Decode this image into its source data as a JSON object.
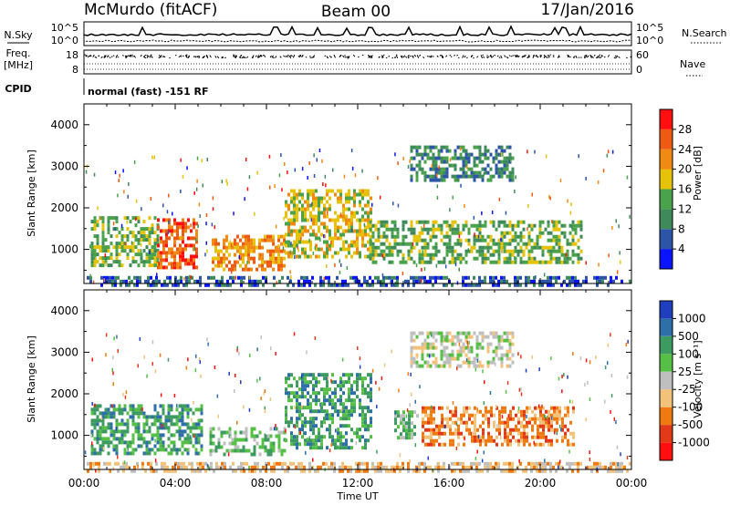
{
  "header": {
    "radar": "McMurdo (fitACF)",
    "beam": "Beam 00",
    "date": "17/Jan/2016"
  },
  "noise_panel": {
    "left_label": "N.Sky",
    "right_label": "N.Search",
    "left_ticks": [
      "10^5",
      "10^0"
    ],
    "right_ticks": [
      "10^5",
      "10^0"
    ]
  },
  "freq_panel": {
    "label_line1": "Freq.",
    "label_line2": "[MHz]",
    "left_ticks": [
      "18",
      "8"
    ],
    "right_label": "Nave",
    "right_ticks": [
      "60",
      "0"
    ]
  },
  "cpid": {
    "label": "CPID",
    "text": "normal (fast) -151 RF"
  },
  "chart_data": [
    {
      "type": "heatmap",
      "name": "power",
      "ylabel": "Slant Range [km]",
      "xlabel": "",
      "x_ticks": [
        "00:00",
        "04:00",
        "08:00",
        "12:00",
        "16:00",
        "20:00",
        "00:00"
      ],
      "xlim": [
        0,
        24
      ],
      "y_ticks": [
        1000,
        2000,
        3000,
        4000
      ],
      "ylim": [
        180,
        4500
      ],
      "colorbar": {
        "label": "Power [dB]",
        "ticks": [
          4,
          8,
          12,
          16,
          20,
          24,
          28
        ],
        "range": [
          0,
          32
        ],
        "colors": [
          "#0a14ff",
          "#2c55a8",
          "#3f8a5a",
          "#4aa24a",
          "#e6c20a",
          "#f08a12",
          "#ee5a12",
          "#ff0f0f"
        ]
      },
      "regions": [
        {
          "t0": 0.3,
          "t1": 3.2,
          "r0": 600,
          "r1": 1800,
          "level": 3
        },
        {
          "t0": 3.2,
          "t1": 5.0,
          "r0": 600,
          "r1": 1750,
          "level": 6
        },
        {
          "t0": 5.6,
          "t1": 8.8,
          "r0": 550,
          "r1": 1350,
          "level": 5
        },
        {
          "t0": 8.8,
          "t1": 12.6,
          "r0": 800,
          "r1": 2450,
          "level": 4
        },
        {
          "t0": 12.5,
          "t1": 21.8,
          "r0": 700,
          "r1": 1700,
          "level": 3
        },
        {
          "t0": 14.3,
          "t1": 18.8,
          "r0": 2700,
          "r1": 3500,
          "level": 2
        },
        {
          "t0": 0.0,
          "t1": 24.0,
          "r0": 180,
          "r1": 360,
          "level": 1
        }
      ]
    },
    {
      "type": "heatmap",
      "name": "velocity",
      "ylabel": "Slant Range [km]",
      "xlabel": "Time UT",
      "x_ticks": [
        "00:00",
        "04:00",
        "08:00",
        "12:00",
        "16:00",
        "20:00",
        "00:00"
      ],
      "xlim": [
        0,
        24
      ],
      "y_ticks": [
        1000,
        2000,
        3000,
        4000
      ],
      "ylim": [
        180,
        4500
      ],
      "colorbar": {
        "label": "Velocity [m s⁻¹]",
        "ticks": [
          1000,
          500,
          100,
          25,
          -25,
          -100,
          -500,
          -1000
        ],
        "colors": [
          "#1f3fbf",
          "#2e6fa8",
          "#3d9a60",
          "#56c046",
          "#bfbfbf",
          "#f2c27a",
          "#f07a12",
          "#e23a18",
          "#ff0f0f"
        ]
      },
      "regions": [
        {
          "t0": 0.3,
          "t1": 5.2,
          "r0": 600,
          "r1": 1750,
          "level": 2
        },
        {
          "t0": 5.5,
          "t1": 8.8,
          "r0": 550,
          "r1": 1200,
          "level": 3
        },
        {
          "t0": 8.8,
          "t1": 12.6,
          "r0": 700,
          "r1": 2500,
          "level": 2
        },
        {
          "t0": 13.6,
          "t1": 14.6,
          "r0": 900,
          "r1": 1600,
          "level": 3
        },
        {
          "t0": 14.8,
          "t1": 21.5,
          "r0": 800,
          "r1": 1700,
          "level": 6
        },
        {
          "t0": 14.3,
          "t1": 18.8,
          "r0": 2700,
          "r1": 3500,
          "level": 4
        },
        {
          "t0": 0.0,
          "t1": 24.0,
          "r0": 180,
          "r1": 360,
          "level": 5
        }
      ]
    }
  ]
}
